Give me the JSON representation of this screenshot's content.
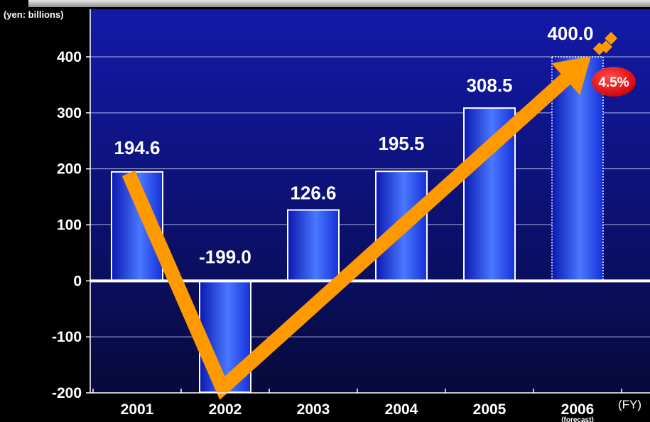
{
  "chart_data": {
    "type": "bar",
    "unit_label": "(yen: billions)",
    "x_axis_suffix": "(FY)",
    "categories": [
      "2001",
      "2002",
      "2003",
      "2004",
      "2005",
      "2006"
    ],
    "category_notes": [
      "",
      "",
      "",
      "",
      "",
      "(forecast)"
    ],
    "values": [
      194.6,
      -199.0,
      126.6,
      195.5,
      308.5,
      400.0
    ],
    "value_labels": [
      "194.6",
      "-199.0",
      "126.6",
      "195.5",
      "308.5",
      "400.0"
    ],
    "forecast_index": 5,
    "ylim": [
      -200,
      400
    ],
    "yticks": [
      400,
      300,
      200,
      100,
      0,
      -100,
      -200
    ],
    "ytick_labels": [
      "400",
      "300",
      "200",
      "100",
      "0",
      "-100",
      "-200"
    ],
    "annotation": {
      "text": "4.5%",
      "color": "#e00000"
    },
    "trend_arrow": {
      "color": "#ff9900"
    },
    "grid": true,
    "colors": {
      "bar_dark": "#0a1cc8",
      "bar_light": "#4a78ff",
      "background_top": "#131aa8",
      "background_bottom": "#070a3a",
      "panel": "#000000"
    }
  }
}
